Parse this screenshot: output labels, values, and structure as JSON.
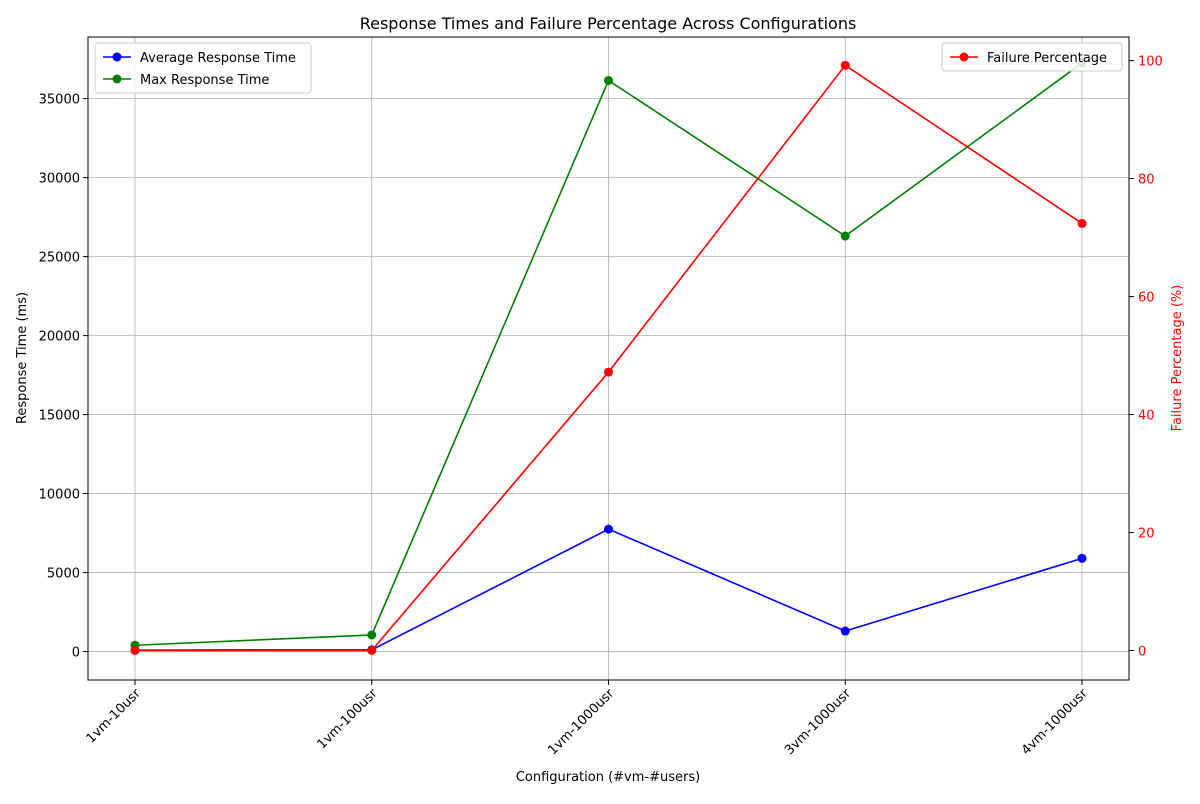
{
  "chart_data": {
    "type": "line",
    "title": "Response Times and Failure Percentage Across Configurations",
    "xlabel": "Configuration (#vm-#users)",
    "ylabel_left": "Response Time (ms)",
    "ylabel_right": "Failure Percentage (%)",
    "categories": [
      "1vm-10usr",
      "1vm-100usr",
      "1vm-1000usr",
      "3vm-1000usr",
      "4vm-1000usr"
    ],
    "ylim_left": [
      -1800,
      38900
    ],
    "yticks_left": [
      0,
      5000,
      10000,
      15000,
      20000,
      25000,
      30000,
      35000
    ],
    "ylim_right": [
      -5,
      104
    ],
    "yticks_right": [
      0,
      20,
      40,
      60,
      80,
      100
    ],
    "grid": true,
    "series_left": [
      {
        "name": "Average Response Time",
        "color": "#0000ff",
        "values": [
          90,
          110,
          7750,
          1300,
          5900
        ]
      },
      {
        "name": "Max Response Time",
        "color": "#008000",
        "values": [
          400,
          1050,
          36150,
          26300,
          37250
        ]
      }
    ],
    "series_right": [
      {
        "name": "Failure Percentage",
        "color": "#ff0000",
        "values": [
          0.0,
          0.0,
          47.2,
          99.2,
          72.4
        ]
      }
    ],
    "legend_left_position": "upper-left",
    "legend_right_position": "upper-right",
    "right_axis_color": "#ff0000"
  }
}
